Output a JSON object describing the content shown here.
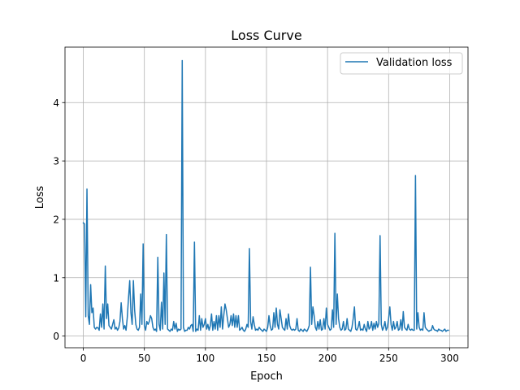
{
  "chart_data": {
    "type": "line",
    "title": "Loss Curve",
    "xlabel": "Epoch",
    "ylabel": "Loss",
    "xlim": [
      -15,
      315
    ],
    "ylim": [
      -0.2,
      4.95
    ],
    "grid": true,
    "legend_position": "top-right",
    "x_ticks": [
      0,
      50,
      100,
      150,
      200,
      250,
      300
    ],
    "y_ticks": [
      0,
      1,
      2,
      3,
      4
    ],
    "series": [
      {
        "name": "Validation loss",
        "color": "#1f77b4",
        "points": [
          [
            0,
            1.94
          ],
          [
            1,
            1.92
          ],
          [
            2,
            0.33
          ],
          [
            3,
            2.52
          ],
          [
            4,
            0.35
          ],
          [
            5,
            0.2
          ],
          [
            6,
            0.88
          ],
          [
            7,
            0.4
          ],
          [
            8,
            0.48
          ],
          [
            9,
            0.15
          ],
          [
            10,
            0.12
          ],
          [
            11,
            0.15
          ],
          [
            12,
            0.14
          ],
          [
            13,
            0.1
          ],
          [
            14,
            0.38
          ],
          [
            15,
            0.15
          ],
          [
            16,
            0.55
          ],
          [
            17,
            0.12
          ],
          [
            18,
            1.2
          ],
          [
            19,
            0.3
          ],
          [
            20,
            0.55
          ],
          [
            21,
            0.18
          ],
          [
            22,
            0.15
          ],
          [
            23,
            0.12
          ],
          [
            24,
            0.2
          ],
          [
            25,
            0.28
          ],
          [
            26,
            0.12
          ],
          [
            27,
            0.15
          ],
          [
            28,
            0.1
          ],
          [
            29,
            0.14
          ],
          [
            30,
            0.25
          ],
          [
            31,
            0.57
          ],
          [
            32,
            0.3
          ],
          [
            33,
            0.12
          ],
          [
            34,
            0.18
          ],
          [
            35,
            0.1
          ],
          [
            36,
            0.32
          ],
          [
            37,
            0.65
          ],
          [
            38,
            0.95
          ],
          [
            39,
            0.4
          ],
          [
            40,
            0.2
          ],
          [
            41,
            0.95
          ],
          [
            42,
            0.45
          ],
          [
            43,
            0.2
          ],
          [
            44,
            0.12
          ],
          [
            45,
            0.1
          ],
          [
            46,
            0.15
          ],
          [
            47,
            0.72
          ],
          [
            48,
            0.2
          ],
          [
            49,
            1.58
          ],
          [
            50,
            0.18
          ],
          [
            51,
            0.1
          ],
          [
            52,
            0.25
          ],
          [
            53,
            0.2
          ],
          [
            54,
            0.25
          ],
          [
            55,
            0.35
          ],
          [
            56,
            0.3
          ],
          [
            57,
            0.15
          ],
          [
            58,
            0.1
          ],
          [
            59,
            0.12
          ],
          [
            60,
            0.08
          ],
          [
            61,
            1.35
          ],
          [
            62,
            0.2
          ],
          [
            63,
            0.1
          ],
          [
            64,
            0.58
          ],
          [
            65,
            0.12
          ],
          [
            66,
            1.08
          ],
          [
            67,
            0.2
          ],
          [
            68,
            1.74
          ],
          [
            69,
            0.12
          ],
          [
            70,
            0.1
          ],
          [
            71,
            0.08
          ],
          [
            72,
            0.12
          ],
          [
            73,
            0.1
          ],
          [
            74,
            0.25
          ],
          [
            75,
            0.12
          ],
          [
            76,
            0.22
          ],
          [
            77,
            0.08
          ],
          [
            78,
            0.12
          ],
          [
            79,
            0.1
          ],
          [
            80,
            0.12
          ],
          [
            81,
            4.72
          ],
          [
            82,
            0.15
          ],
          [
            83,
            0.08
          ],
          [
            84,
            0.1
          ],
          [
            85,
            0.1
          ],
          [
            86,
            0.15
          ],
          [
            87,
            0.12
          ],
          [
            88,
            0.18
          ],
          [
            89,
            0.2
          ],
          [
            90,
            0.08
          ],
          [
            91,
            1.61
          ],
          [
            92,
            0.08
          ],
          [
            93,
            0.12
          ],
          [
            94,
            0.1
          ],
          [
            95,
            0.35
          ],
          [
            96,
            0.1
          ],
          [
            97,
            0.3
          ],
          [
            98,
            0.15
          ],
          [
            99,
            0.2
          ],
          [
            100,
            0.3
          ],
          [
            101,
            0.12
          ],
          [
            102,
            0.2
          ],
          [
            103,
            0.1
          ],
          [
            104,
            0.18
          ],
          [
            105,
            0.38
          ],
          [
            106,
            0.1
          ],
          [
            107,
            0.25
          ],
          [
            108,
            0.12
          ],
          [
            109,
            0.35
          ],
          [
            110,
            0.1
          ],
          [
            111,
            0.35
          ],
          [
            112,
            0.15
          ],
          [
            113,
            0.5
          ],
          [
            114,
            0.12
          ],
          [
            115,
            0.35
          ],
          [
            116,
            0.55
          ],
          [
            117,
            0.45
          ],
          [
            118,
            0.3
          ],
          [
            119,
            0.15
          ],
          [
            120,
            0.2
          ],
          [
            121,
            0.35
          ],
          [
            122,
            0.18
          ],
          [
            123,
            0.38
          ],
          [
            124,
            0.15
          ],
          [
            125,
            0.35
          ],
          [
            126,
            0.15
          ],
          [
            127,
            0.35
          ],
          [
            128,
            0.1
          ],
          [
            129,
            0.12
          ],
          [
            130,
            0.15
          ],
          [
            131,
            0.1
          ],
          [
            132,
            0.08
          ],
          [
            133,
            0.12
          ],
          [
            134,
            0.2
          ],
          [
            135,
            0.15
          ],
          [
            136,
            1.5
          ],
          [
            137,
            0.25
          ],
          [
            138,
            0.12
          ],
          [
            139,
            0.33
          ],
          [
            140,
            0.2
          ],
          [
            141,
            0.1
          ],
          [
            142,
            0.12
          ],
          [
            143,
            0.1
          ],
          [
            144,
            0.15
          ],
          [
            145,
            0.12
          ],
          [
            146,
            0.1
          ],
          [
            147,
            0.08
          ],
          [
            148,
            0.12
          ],
          [
            149,
            0.1
          ],
          [
            150,
            0.08
          ],
          [
            151,
            0.15
          ],
          [
            152,
            0.35
          ],
          [
            153,
            0.18
          ],
          [
            154,
            0.1
          ],
          [
            155,
            0.12
          ],
          [
            156,
            0.4
          ],
          [
            157,
            0.15
          ],
          [
            158,
            0.48
          ],
          [
            159,
            0.2
          ],
          [
            160,
            0.12
          ],
          [
            161,
            0.45
          ],
          [
            162,
            0.3
          ],
          [
            163,
            0.15
          ],
          [
            164,
            0.12
          ],
          [
            165,
            0.1
          ],
          [
            166,
            0.3
          ],
          [
            167,
            0.12
          ],
          [
            168,
            0.38
          ],
          [
            169,
            0.18
          ],
          [
            170,
            0.12
          ],
          [
            171,
            0.1
          ],
          [
            172,
            0.12
          ],
          [
            173,
            0.1
          ],
          [
            174,
            0.12
          ],
          [
            175,
            0.3
          ],
          [
            176,
            0.1
          ],
          [
            177,
            0.08
          ],
          [
            178,
            0.12
          ],
          [
            179,
            0.1
          ],
          [
            180,
            0.08
          ],
          [
            181,
            0.12
          ],
          [
            182,
            0.1
          ],
          [
            183,
            0.08
          ],
          [
            184,
            0.12
          ],
          [
            185,
            0.18
          ],
          [
            186,
            1.18
          ],
          [
            187,
            0.2
          ],
          [
            188,
            0.5
          ],
          [
            189,
            0.35
          ],
          [
            190,
            0.15
          ],
          [
            191,
            0.1
          ],
          [
            192,
            0.25
          ],
          [
            193,
            0.12
          ],
          [
            194,
            0.28
          ],
          [
            195,
            0.1
          ],
          [
            196,
            0.12
          ],
          [
            197,
            0.3
          ],
          [
            198,
            0.12
          ],
          [
            199,
            0.48
          ],
          [
            200,
            0.2
          ],
          [
            201,
            0.15
          ],
          [
            202,
            0.1
          ],
          [
            203,
            0.12
          ],
          [
            204,
            0.45
          ],
          [
            205,
            0.15
          ],
          [
            206,
            1.76
          ],
          [
            207,
            0.2
          ],
          [
            208,
            0.72
          ],
          [
            209,
            0.3
          ],
          [
            210,
            0.15
          ],
          [
            211,
            0.1
          ],
          [
            212,
            0.12
          ],
          [
            213,
            0.25
          ],
          [
            214,
            0.1
          ],
          [
            215,
            0.12
          ],
          [
            216,
            0.3
          ],
          [
            217,
            0.12
          ],
          [
            218,
            0.1
          ],
          [
            219,
            0.08
          ],
          [
            220,
            0.15
          ],
          [
            221,
            0.3
          ],
          [
            222,
            0.5
          ],
          [
            223,
            0.12
          ],
          [
            224,
            0.1
          ],
          [
            225,
            0.15
          ],
          [
            226,
            0.25
          ],
          [
            227,
            0.1
          ],
          [
            228,
            0.12
          ],
          [
            229,
            0.1
          ],
          [
            230,
            0.2
          ],
          [
            231,
            0.12
          ],
          [
            232,
            0.08
          ],
          [
            233,
            0.25
          ],
          [
            234,
            0.12
          ],
          [
            235,
            0.15
          ],
          [
            236,
            0.25
          ],
          [
            237,
            0.1
          ],
          [
            238,
            0.22
          ],
          [
            239,
            0.12
          ],
          [
            240,
            0.25
          ],
          [
            241,
            0.15
          ],
          [
            242,
            0.22
          ],
          [
            243,
            1.72
          ],
          [
            244,
            0.2
          ],
          [
            245,
            0.1
          ],
          [
            246,
            0.15
          ],
          [
            247,
            0.25
          ],
          [
            248,
            0.1
          ],
          [
            249,
            0.15
          ],
          [
            250,
            0.3
          ],
          [
            251,
            0.5
          ],
          [
            252,
            0.2
          ],
          [
            253,
            0.1
          ],
          [
            254,
            0.25
          ],
          [
            255,
            0.12
          ],
          [
            256,
            0.15
          ],
          [
            257,
            0.25
          ],
          [
            258,
            0.1
          ],
          [
            259,
            0.12
          ],
          [
            260,
            0.28
          ],
          [
            261,
            0.1
          ],
          [
            262,
            0.42
          ],
          [
            263,
            0.15
          ],
          [
            264,
            0.12
          ],
          [
            265,
            0.1
          ],
          [
            266,
            0.2
          ],
          [
            267,
            0.12
          ],
          [
            268,
            0.1
          ],
          [
            269,
            0.12
          ],
          [
            270,
            0.1
          ],
          [
            271,
            0.1
          ],
          [
            272,
            2.75
          ],
          [
            273,
            0.12
          ],
          [
            274,
            0.4
          ],
          [
            275,
            0.15
          ],
          [
            276,
            0.1
          ],
          [
            277,
            0.12
          ],
          [
            278,
            0.1
          ],
          [
            279,
            0.4
          ],
          [
            280,
            0.15
          ],
          [
            281,
            0.12
          ],
          [
            282,
            0.1
          ],
          [
            283,
            0.08
          ],
          [
            284,
            0.1
          ],
          [
            285,
            0.1
          ],
          [
            286,
            0.18
          ],
          [
            287,
            0.12
          ],
          [
            288,
            0.1
          ],
          [
            289,
            0.1
          ],
          [
            290,
            0.08
          ],
          [
            291,
            0.12
          ],
          [
            292,
            0.1
          ],
          [
            293,
            0.1
          ],
          [
            294,
            0.08
          ],
          [
            295,
            0.1
          ],
          [
            296,
            0.12
          ],
          [
            297,
            0.08
          ],
          [
            298,
            0.1
          ],
          [
            299,
            0.1
          ]
        ]
      }
    ]
  }
}
